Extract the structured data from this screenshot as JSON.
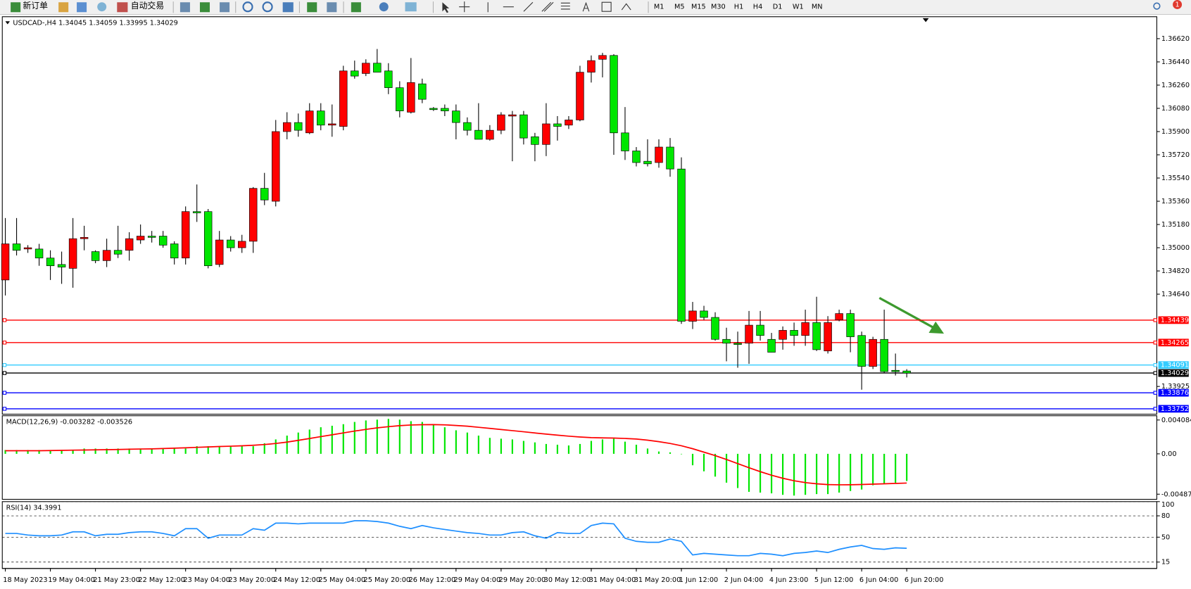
{
  "toolbar": {
    "new_order": "新订单",
    "auto_trading": "自动交易",
    "periods": [
      "M1",
      "M5",
      "M15",
      "M30",
      "H1",
      "H4",
      "D1",
      "W1",
      "MN"
    ],
    "badge": "1"
  },
  "chart_data": [
    {
      "type": "candlestick",
      "title": "USDCAD-,H4 1.34045 1.34059 1.33995 1.34029",
      "categories": [
        "18 May 2023",
        null,
        null,
        null,
        "19 May 04:00",
        null,
        null,
        null,
        "21 May 23:00",
        null,
        null,
        null,
        "22 May 12:00",
        null,
        null,
        null,
        "23 May 04:00",
        null,
        null,
        null,
        "23 May 20:00",
        null,
        null,
        null,
        "24 May 12:00",
        null,
        null,
        null,
        "25 May 04:00",
        null,
        null,
        null,
        "25 May 20:00",
        null,
        null,
        null,
        "26 May 12:00",
        null,
        null,
        null,
        "29 May 04:00",
        null,
        null,
        null,
        "29 May 20:00",
        null,
        null,
        null,
        "30 May 12:00",
        null,
        null,
        null,
        "31 May 04:00",
        null,
        null,
        null,
        "31 May 20:00",
        null,
        null,
        null,
        "1 Jun 12:00",
        null,
        null,
        null,
        "2 Jun 04:00",
        null,
        null,
        null,
        "4 Jun 23:00",
        null,
        null,
        null,
        "5 Jun 12:00",
        null,
        null,
        null,
        "6 Jun 04:00",
        null,
        null,
        null,
        "6 Jun 20:00"
      ],
      "open": [
        1.3475,
        1.3503,
        1.3499,
        1.3499,
        1.3492,
        1.3487,
        1.3484,
        1.3507,
        1.3497,
        1.349,
        1.3498,
        1.3498,
        1.3506,
        1.3509,
        1.3509,
        1.3503,
        1.3492,
        1.3528,
        1.3528,
        1.3487,
        1.3506,
        1.35,
        1.3505,
        1.3546,
        1.3536,
        1.359,
        1.3597,
        1.3589,
        1.3606,
        1.3595,
        1.3594,
        1.3637,
        1.3635,
        1.3643,
        1.3637,
        1.3624,
        1.3605,
        1.3627,
        1.3608,
        1.3608,
        1.3606,
        1.3597,
        1.3591,
        1.3584,
        1.3591,
        1.3602,
        1.3603,
        1.3586,
        1.358,
        1.3596,
        1.3595,
        1.3599,
        1.3636,
        1.3646,
        1.3649,
        1.3589,
        1.3575,
        1.3567,
        1.3566,
        1.3578,
        1.3561,
        1.3443,
        1.3451,
        1.3446,
        1.3429,
        1.3426,
        1.3426,
        1.344,
        1.3429,
        1.3429,
        1.3436,
        1.3432,
        1.3442,
        1.342,
        1.3444,
        1.3449,
        1.3432,
        1.3408,
        1.3429,
        1.3405,
        1.34045
      ],
      "high": [
        1.3523,
        1.3523,
        1.3502,
        1.3503,
        1.3498,
        1.3497,
        1.3523,
        1.3517,
        1.3498,
        1.3507,
        1.3517,
        1.3512,
        1.3518,
        1.3513,
        1.3513,
        1.3505,
        1.3532,
        1.3549,
        1.353,
        1.3513,
        1.3509,
        1.351,
        1.3547,
        1.3558,
        1.3599,
        1.3605,
        1.3604,
        1.3612,
        1.3612,
        1.3611,
        1.3641,
        1.3645,
        1.3646,
        1.3654,
        1.3643,
        1.3629,
        1.3647,
        1.3631,
        1.3609,
        1.3611,
        1.3611,
        1.3601,
        1.3612,
        1.3595,
        1.3605,
        1.3606,
        1.3606,
        1.3589,
        1.3612,
        1.3602,
        1.3602,
        1.3641,
        1.3649,
        1.3651,
        1.365,
        1.3609,
        1.3578,
        1.3584,
        1.3584,
        1.3585,
        1.357,
        1.3458,
        1.3455,
        1.345,
        1.3438,
        1.3435,
        1.3451,
        1.3451,
        1.3434,
        1.3439,
        1.3442,
        1.3452,
        1.3462,
        1.3447,
        1.3452,
        1.3452,
        1.3435,
        1.3431,
        1.3452,
        1.3418,
        1.34059
      ],
      "low": [
        1.3463,
        1.3494,
        1.3496,
        1.3486,
        1.3475,
        1.3472,
        1.3469,
        1.3498,
        1.3488,
        1.3485,
        1.3492,
        1.349,
        1.3503,
        1.3504,
        1.35,
        1.3487,
        1.3487,
        1.352,
        1.3484,
        1.3485,
        1.3497,
        1.3496,
        1.3496,
        1.3533,
        1.3532,
        1.3584,
        1.3586,
        1.3588,
        1.3591,
        1.3586,
        1.3591,
        1.3631,
        1.3633,
        1.3636,
        1.3619,
        1.3601,
        1.3604,
        1.3612,
        1.3606,
        1.3602,
        1.3584,
        1.3587,
        1.3584,
        1.3583,
        1.3588,
        1.3567,
        1.358,
        1.3567,
        1.3571,
        1.3583,
        1.3592,
        1.3598,
        1.3628,
        1.3632,
        1.3572,
        1.3568,
        1.3563,
        1.3563,
        1.3562,
        1.3555,
        1.3441,
        1.3437,
        1.3444,
        1.3428,
        1.3412,
        1.3407,
        1.341,
        1.3428,
        1.3419,
        1.3421,
        1.3424,
        1.3424,
        1.342,
        1.3418,
        1.3443,
        1.3419,
        1.339,
        1.3406,
        1.3403,
        1.3401,
        1.33995
      ],
      "close": [
        1.3503,
        1.3498,
        1.35,
        1.3492,
        1.3486,
        1.3485,
        1.3507,
        1.3508,
        1.349,
        1.3498,
        1.3495,
        1.3507,
        1.3509,
        1.3508,
        1.3502,
        1.3492,
        1.3528,
        1.3527,
        1.3486,
        1.3506,
        1.35,
        1.3505,
        1.3546,
        1.3537,
        1.359,
        1.3597,
        1.3591,
        1.3606,
        1.3595,
        1.3596,
        1.3637,
        1.3633,
        1.3643,
        1.3636,
        1.3624,
        1.3606,
        1.3628,
        1.3615,
        1.3607,
        1.3606,
        1.3597,
        1.3591,
        1.3584,
        1.3591,
        1.3603,
        1.3603,
        1.3585,
        1.358,
        1.3596,
        1.3594,
        1.3599,
        1.3636,
        1.3645,
        1.3649,
        1.3589,
        1.3575,
        1.3566,
        1.3565,
        1.3578,
        1.3561,
        1.3443,
        1.3451,
        1.3446,
        1.3429,
        1.3426,
        1.3425,
        1.344,
        1.3432,
        1.3419,
        1.3436,
        1.3432,
        1.3442,
        1.3421,
        1.3442,
        1.3449,
        1.3431,
        1.3408,
        1.3429,
        1.3404,
        1.3404,
        1.34029
      ],
      "up_color": "#ff0000",
      "down_color": "#00e600",
      "ylim": [
        1.3371,
        1.3679
      ],
      "yticks": [
        {
          "value": 1.3662,
          "label": "1.36620"
        },
        {
          "value": 1.3644,
          "label": "1.36440"
        },
        {
          "value": 1.3626,
          "label": "1.36260"
        },
        {
          "value": 1.3608,
          "label": "1.36080"
        },
        {
          "value": 1.359,
          "label": "1.35900"
        },
        {
          "value": 1.3572,
          "label": "1.35720"
        },
        {
          "value": 1.3554,
          "label": "1.35540"
        },
        {
          "value": 1.3536,
          "label": "1.35360"
        },
        {
          "value": 1.3518,
          "label": "1.35180"
        },
        {
          "value": 1.35,
          "label": "1.35000"
        },
        {
          "value": 1.3482,
          "label": "1.34820"
        },
        {
          "value": 1.3464,
          "label": "1.34640"
        },
        1.33925
      ],
      "grid": false,
      "hlines": [
        {
          "value": 1.34439,
          "color": "#ff0000"
        },
        {
          "value": 1.34265,
          "color": "#ff0000"
        },
        {
          "value": 1.34091,
          "color": "#33ccff"
        },
        {
          "value": 1.34029,
          "color": "#000000"
        },
        {
          "value": 1.33876,
          "color": "#0000ff"
        },
        {
          "value": 1.33752,
          "color": "#0000ff"
        }
      ]
    },
    {
      "type": "macd",
      "title": "MACD(12,26,9) -0.003282 -0.003526",
      "series": [
        {
          "type": "bar",
          "color": "#00e600",
          "values": [
            0.00046,
            0.00046,
            0.00046,
            0.00046,
            0.00046,
            0.00046,
            0.00046,
            0.00064,
            0.00064,
            0.00064,
            0.00064,
            0.00064,
            0.00064,
            0.00064,
            0.00064,
            0.00064,
            0.00064,
            0.00092,
            0.00092,
            0.00092,
            0.00092,
            0.00092,
            0.00092,
            0.00128,
            0.00174,
            0.0022,
            0.00257,
            0.00293,
            0.00321,
            0.00339,
            0.00358,
            0.00385,
            0.00403,
            0.00413,
            0.00422,
            0.00413,
            0.00394,
            0.00385,
            0.00358,
            0.00321,
            0.00284,
            0.00257,
            0.0022,
            0.00193,
            0.00183,
            0.00174,
            0.00156,
            0.00138,
            0.00119,
            0.0011,
            0.00101,
            0.00119,
            0.00156,
            0.00174,
            0.00183,
            0.00147,
            0.0011,
            0.00064,
            0.00028,
            0.00018,
            -5e-05,
            -0.00138,
            -0.00211,
            -0.00275,
            -0.00348,
            -0.00413,
            -0.00459,
            -0.00468,
            -0.00477,
            -0.00495,
            -0.00504,
            -0.00495,
            -0.00486,
            -0.00486,
            -0.00468,
            -0.00449,
            -0.00431,
            -0.0038,
            -0.0036,
            -0.0035,
            -0.003282
          ]
        },
        {
          "type": "line",
          "color": "#ff0000",
          "values": [
            0.00037,
            0.00037,
            0.00037,
            0.00037,
            0.0004,
            0.00042,
            0.00044,
            0.00046,
            0.00048,
            0.0005,
            0.00053,
            0.00055,
            0.00058,
            0.0006,
            0.00064,
            0.00068,
            0.00073,
            0.00078,
            0.00083,
            0.00088,
            0.00092,
            0.00097,
            0.00103,
            0.00112,
            0.00125,
            0.00142,
            0.00163,
            0.00185,
            0.00208,
            0.0023,
            0.00253,
            0.00275,
            0.00295,
            0.00313,
            0.00328,
            0.0034,
            0.00348,
            0.00352,
            0.00353,
            0.0035,
            0.00343,
            0.00333,
            0.00321,
            0.00307,
            0.00293,
            0.0028,
            0.00266,
            0.00252,
            0.00238,
            0.00225,
            0.00213,
            0.00203,
            0.00196,
            0.00192,
            0.0019,
            0.00186,
            0.00178,
            0.00165,
            0.00147,
            0.00125,
            0.00098,
            0.00062,
            0.00021,
            -0.00022,
            -0.00068,
            -0.00118,
            -0.00168,
            -0.00215,
            -0.00258,
            -0.00295,
            -0.00325,
            -0.00347,
            -0.00362,
            -0.00371,
            -0.00374,
            -0.00373,
            -0.0037,
            -0.00366,
            -0.00362,
            -0.00357,
            -0.003526
          ]
        }
      ],
      "ylim": [
        -0.0054,
        0.0046
      ],
      "yticks": [
        0.004084,
        {
          "value": 0,
          "label": "0.00"
        },
        -0.004872
      ],
      "grid": false
    },
    {
      "type": "line",
      "title": "RSI(14) 34.3991",
      "series": [
        {
          "type": "line",
          "color": "#1e8fff",
          "values": [
            55.2,
            55.2,
            53.0,
            51.9,
            51.9,
            53.0,
            57.5,
            57.5,
            51.9,
            54.1,
            54.1,
            56.4,
            57.5,
            57.5,
            55.2,
            51.9,
            62.0,
            62.0,
            48.5,
            53.0,
            53.0,
            53.0,
            62.0,
            59.7,
            69.8,
            69.8,
            68.7,
            69.8,
            69.8,
            69.8,
            69.8,
            73.1,
            73.1,
            72.0,
            69.8,
            65.3,
            62.0,
            66.4,
            63.1,
            60.8,
            58.6,
            56.4,
            55.2,
            53.0,
            53.0,
            56.4,
            57.5,
            51.9,
            48.5,
            56.4,
            55.2,
            55.2,
            66.4,
            69.8,
            68.7,
            48.5,
            44.1,
            42.9,
            42.9,
            47.4,
            44.1,
            25.0,
            27.3,
            26.1,
            25.0,
            23.9,
            23.9,
            27.3,
            26.1,
            23.9,
            27.3,
            28.4,
            30.6,
            28.4,
            32.9,
            36.2,
            38.5,
            34.0,
            32.9,
            35.1,
            34.3991
          ]
        }
      ],
      "ylim": [
        6,
        100
      ],
      "yticks": [
        100,
        80,
        50,
        15
      ],
      "grid": "dashed"
    }
  ]
}
